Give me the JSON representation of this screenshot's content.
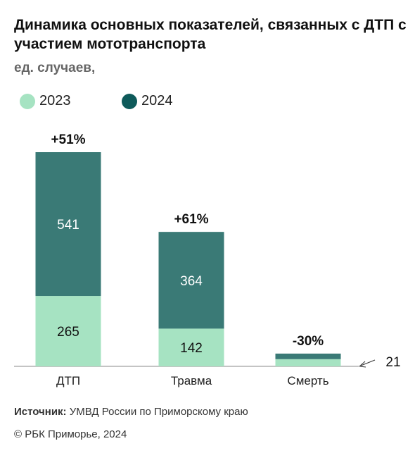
{
  "header": {
    "title": "Динамика основных показателей, связанных с ДТП с участием мототранспорта",
    "subtitle": "ед. случаев,"
  },
  "legend": [
    {
      "label": "2023",
      "color": "#a6e3c2"
    },
    {
      "label": "2024",
      "color": "#0e5a5a"
    }
  ],
  "chart_data": {
    "type": "bar",
    "stacked": true,
    "categories": [
      "ДТП",
      "Травма",
      "Смерть"
    ],
    "series": [
      {
        "name": "2023",
        "values": [
          265,
          142,
          27
        ],
        "color": "#a6e3c2"
      },
      {
        "name": "2024",
        "values": [
          541,
          364,
          21
        ],
        "color": "#3a7a76"
      }
    ],
    "change_labels": [
      "+51%",
      "+61%",
      "-30%"
    ],
    "callout_value": "21",
    "ylim": [
      0,
      806
    ]
  },
  "footer": {
    "source_label": "Источник:",
    "source_text": " УМВД России по Приморскому краю",
    "copyright": "© РБК Приморье, 2024"
  }
}
